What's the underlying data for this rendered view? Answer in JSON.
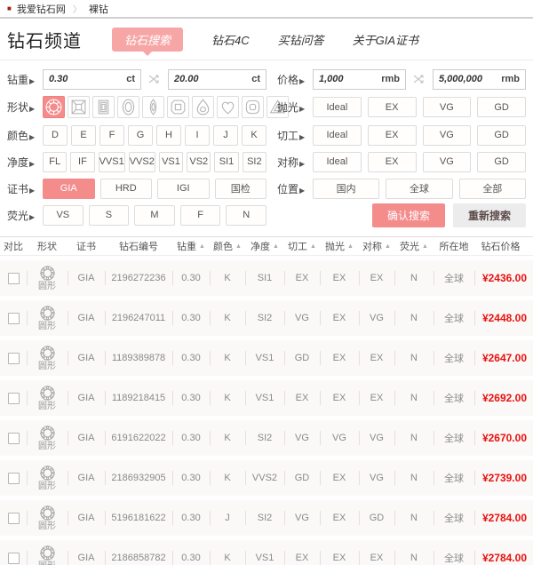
{
  "ui": {
    "label_arrow": "▶",
    "breadcrumb_bullet": "■",
    "breadcrumb_separator": "〉",
    "sort_glyph": "▲"
  },
  "breadcrumb": {
    "home": "我爱钻石网",
    "current": "裸钻"
  },
  "header": {
    "title": "钻石频道",
    "tabs": [
      {
        "label": "钻石搜索",
        "active": true
      },
      {
        "label": "钻石4C",
        "active": false
      },
      {
        "label": "买钻问答",
        "active": false
      },
      {
        "label": "关于GIA证书",
        "active": false
      }
    ]
  },
  "filters": {
    "carat": {
      "label": "钻重",
      "min": "0.30",
      "max": "20.00",
      "unit": "ct"
    },
    "price": {
      "label": "价格",
      "min": "1,000",
      "max": "5,000,000",
      "unit": "rmb"
    },
    "shape": {
      "label": "形状",
      "selected": 0,
      "options": [
        "圆形",
        "公主方形",
        "祖母绿形",
        "椭圆形",
        "马眼形",
        "雷迪恩形",
        "梨形",
        "心形",
        "垫形",
        "三角形"
      ]
    },
    "color": {
      "label": "颜色",
      "selected": -1,
      "options": [
        "D",
        "E",
        "F",
        "G",
        "H",
        "I",
        "J",
        "K"
      ]
    },
    "clarity": {
      "label": "净度",
      "selected": -1,
      "options": [
        "FL",
        "IF",
        "VVS1",
        "VVS2",
        "VS1",
        "VS2",
        "SI1",
        "SI2"
      ]
    },
    "certificate": {
      "label": "证书",
      "selected": 0,
      "options": [
        "GIA",
        "HRD",
        "IGI",
        "国检"
      ]
    },
    "fluorescence": {
      "label": "荧光",
      "selected": -1,
      "options": [
        "VS",
        "S",
        "M",
        "F",
        "N"
      ]
    },
    "polish": {
      "label": "抛光",
      "selected": -1,
      "options": [
        "Ideal",
        "EX",
        "VG",
        "GD"
      ]
    },
    "cut": {
      "label": "切工",
      "selected": -1,
      "options": [
        "Ideal",
        "EX",
        "VG",
        "GD"
      ]
    },
    "symmetry": {
      "label": "对称",
      "selected": -1,
      "options": [
        "Ideal",
        "EX",
        "VG",
        "GD"
      ]
    },
    "location": {
      "label": "位置",
      "selected": -1,
      "options": [
        "国内",
        "全球",
        "全部"
      ]
    },
    "confirm_button": "确认搜索",
    "reset_button": "重新搜索"
  },
  "table": {
    "columns": [
      {
        "label": "对比",
        "sortable": false
      },
      {
        "label": "形状",
        "sortable": false
      },
      {
        "label": "证书",
        "sortable": false
      },
      {
        "label": "钻石编号",
        "sortable": false
      },
      {
        "label": "钻重",
        "sortable": true
      },
      {
        "label": "颜色",
        "sortable": true
      },
      {
        "label": "净度",
        "sortable": true
      },
      {
        "label": "切工",
        "sortable": true
      },
      {
        "label": "抛光",
        "sortable": true
      },
      {
        "label": "对称",
        "sortable": true
      },
      {
        "label": "荧光",
        "sortable": true
      },
      {
        "label": "所在地",
        "sortable": false
      },
      {
        "label": "钻石价格",
        "sortable": false
      }
    ],
    "rows": [
      {
        "shape": "圆形",
        "cert": "GIA",
        "id": "2196272236",
        "carat": "0.30",
        "color": "K",
        "clarity": "SI1",
        "cut": "EX",
        "polish": "EX",
        "symmetry": "EX",
        "fluorescence": "N",
        "location": "全球",
        "price": "¥2436.00"
      },
      {
        "shape": "圆形",
        "cert": "GIA",
        "id": "2196247011",
        "carat": "0.30",
        "color": "K",
        "clarity": "SI2",
        "cut": "VG",
        "polish": "EX",
        "symmetry": "VG",
        "fluorescence": "N",
        "location": "全球",
        "price": "¥2448.00"
      },
      {
        "shape": "圆形",
        "cert": "GIA",
        "id": "1189389878",
        "carat": "0.30",
        "color": "K",
        "clarity": "VS1",
        "cut": "GD",
        "polish": "EX",
        "symmetry": "EX",
        "fluorescence": "N",
        "location": "全球",
        "price": "¥2647.00"
      },
      {
        "shape": "圆形",
        "cert": "GIA",
        "id": "1189218415",
        "carat": "0.30",
        "color": "K",
        "clarity": "VS1",
        "cut": "EX",
        "polish": "EX",
        "symmetry": "EX",
        "fluorescence": "N",
        "location": "全球",
        "price": "¥2692.00"
      },
      {
        "shape": "圆形",
        "cert": "GIA",
        "id": "6191622022",
        "carat": "0.30",
        "color": "K",
        "clarity": "SI2",
        "cut": "VG",
        "polish": "VG",
        "symmetry": "VG",
        "fluorescence": "N",
        "location": "全球",
        "price": "¥2670.00"
      },
      {
        "shape": "圆形",
        "cert": "GIA",
        "id": "2186932905",
        "carat": "0.30",
        "color": "K",
        "clarity": "VVS2",
        "cut": "GD",
        "polish": "EX",
        "symmetry": "VG",
        "fluorescence": "N",
        "location": "全球",
        "price": "¥2739.00"
      },
      {
        "shape": "圆形",
        "cert": "GIA",
        "id": "5196181622",
        "carat": "0.30",
        "color": "J",
        "clarity": "SI2",
        "cut": "VG",
        "polish": "EX",
        "symmetry": "GD",
        "fluorescence": "N",
        "location": "全球",
        "price": "¥2784.00"
      },
      {
        "shape": "圆形",
        "cert": "GIA",
        "id": "2186858782",
        "carat": "0.30",
        "color": "K",
        "clarity": "VS1",
        "cut": "EX",
        "polish": "EX",
        "symmetry": "EX",
        "fluorescence": "N",
        "location": "全球",
        "price": "¥2784.00"
      }
    ]
  },
  "colors": {
    "accent_pink": "#f48c8c",
    "tab_pink": "#f7a6a6",
    "price_red": "#e8120c"
  }
}
